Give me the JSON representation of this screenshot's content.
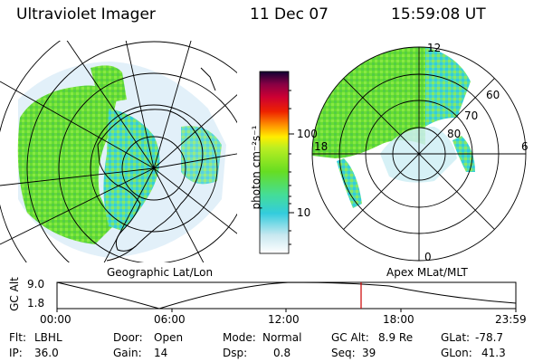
{
  "header": {
    "title": "Ultraviolet Imager",
    "date": "11 Dec 07",
    "time": "15:59:08 UT"
  },
  "panels": {
    "left_label": "Geographic Lat/Lon",
    "right_label": "Apex MLat/MLT"
  },
  "colorbar": {
    "axis_label": "photon cm⁻²s⁻¹",
    "tick_100": "100",
    "tick_10": "10"
  },
  "polar_plot": {
    "mlt_labels": {
      "top": "12",
      "left": "18",
      "right": "6",
      "bottom": "0"
    },
    "lat_labels": [
      "60",
      "70",
      "80"
    ]
  },
  "orbit": {
    "ylabel": "GC Alt",
    "ytick_top": "9.0",
    "ytick_bottom": "1.8",
    "xticks": [
      "00:00",
      "06:00",
      "12:00",
      "18:00",
      "23:59"
    ],
    "marker_color": "#cc0000"
  },
  "info": {
    "filter_label": "Flt:",
    "filter_value": "LBHL",
    "ip_label": "IP:",
    "ip_value": "36.0",
    "door_label": "Door:",
    "door_value": "Open",
    "gain_label": "Gain:",
    "gain_value": "14",
    "mode_label": "Mode:",
    "mode_value": "Normal",
    "dsp_label": "Dsp:",
    "dsp_value": "0.8",
    "gcalt_label": "GC Alt:",
    "gcalt_value": "8.9 Re",
    "seq_label": "Seq:",
    "seq_value": "39",
    "glat_label": "GLat:",
    "glat_value": "-78.7",
    "glon_label": "GLon:",
    "glon_value": "41.3"
  },
  "colors": {
    "aurora_green": "#66dd33",
    "aurora_cyan": "#33ddcc",
    "background_speckle": "#ddeeff"
  }
}
